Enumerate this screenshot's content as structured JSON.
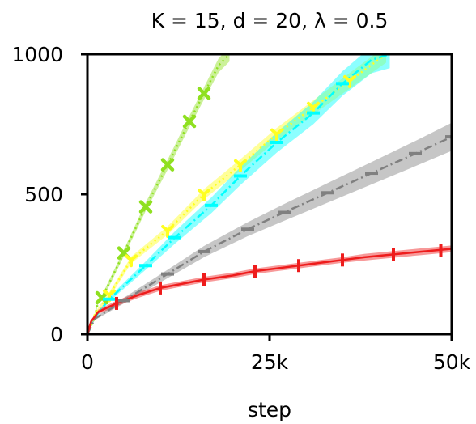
{
  "chart_data": {
    "type": "line",
    "title": "K = 15, d = 20, λ = 0.5",
    "xlabel": "step",
    "ylabel": "",
    "xlim": [
      0,
      50000
    ],
    "ylim": [
      0,
      1000
    ],
    "x_ticks": [
      {
        "value": 0,
        "label": "0"
      },
      {
        "value": 25000,
        "label": "25k"
      },
      {
        "value": 50000,
        "label": "50k"
      }
    ],
    "y_ticks": [
      {
        "value": 0,
        "label": "0"
      },
      {
        "value": 500,
        "label": "500"
      },
      {
        "value": 1000,
        "label": "1000"
      }
    ],
    "grid": false,
    "legend": "none",
    "series": [
      {
        "color": "#8fe020",
        "line_style": "dotted",
        "marker": "X",
        "band": true,
        "x": [
          0,
          1000,
          1500,
          2000,
          5000,
          8000,
          11000,
          14000,
          16000,
          18000,
          19500
        ],
        "y": [
          0,
          60,
          120,
          130,
          290,
          455,
          605,
          760,
          860,
          960,
          1000
        ],
        "band_halfwidth": [
          0,
          5,
          8,
          10,
          12,
          15,
          18,
          20,
          22,
          25,
          26
        ],
        "marker_x": [
          2000,
          5000,
          8000,
          11000,
          14000,
          16000
        ],
        "marker_y": [
          130,
          290,
          455,
          605,
          760,
          860
        ]
      },
      {
        "color": "#ffff20",
        "line_style": "dotted",
        "marker": "tri_down",
        "band": true,
        "x": [
          0,
          1000,
          3000,
          6000,
          11000,
          16000,
          21000,
          26000,
          31000,
          36000,
          41000
        ],
        "y": [
          0,
          70,
          140,
          265,
          370,
          500,
          605,
          715,
          810,
          905,
          1000
        ],
        "band_halfwidth": [
          0,
          6,
          10,
          12,
          15,
          18,
          20,
          22,
          25,
          28,
          30
        ],
        "marker_x": [
          3000,
          6000,
          11000,
          16000,
          21000,
          26000,
          31000,
          36000
        ],
        "marker_y": [
          140,
          265,
          370,
          500,
          605,
          715,
          810,
          905
        ]
      },
      {
        "color": "#00ffff",
        "line_style": "dashdot",
        "marker": "hline",
        "band": true,
        "x": [
          0,
          1000,
          3000,
          8000,
          12000,
          17000,
          21000,
          26000,
          31000,
          35000,
          39000,
          41500
        ],
        "y": [
          0,
          60,
          125,
          245,
          345,
          460,
          565,
          685,
          790,
          895,
          980,
          1000
        ],
        "band_halfwidth": [
          0,
          5,
          8,
          15,
          22,
          28,
          32,
          36,
          40,
          44,
          48,
          50
        ],
        "marker_x": [
          3000,
          8000,
          12000,
          17000,
          21000,
          26000,
          31000,
          35000
        ],
        "marker_y": [
          125,
          245,
          345,
          460,
          565,
          685,
          790,
          895
        ]
      },
      {
        "color": "#808080",
        "line_style": "dashdot",
        "marker": "hline",
        "band": true,
        "x": [
          0,
          1000,
          5000,
          11000,
          16000,
          22000,
          27000,
          33000,
          39000,
          45000,
          50000
        ],
        "y": [
          0,
          55,
          120,
          215,
          295,
          375,
          435,
          505,
          575,
          645,
          705
        ],
        "band_halfwidth": [
          0,
          5,
          10,
          15,
          20,
          25,
          30,
          35,
          40,
          45,
          50
        ],
        "marker_x": [
          5000,
          11000,
          16000,
          22000,
          27000,
          33000,
          39000,
          45000,
          50000
        ],
        "marker_y": [
          120,
          215,
          295,
          375,
          435,
          505,
          575,
          645,
          705
        ]
      },
      {
        "color": "#ee1c1c",
        "line_style": "solid",
        "marker": "vline",
        "band": true,
        "x": [
          0,
          500,
          1500,
          4000,
          7000,
          10000,
          13000,
          16000,
          20000,
          23000,
          26000,
          29000,
          32000,
          35000,
          38000,
          42000,
          46000,
          50000
        ],
        "y": [
          0,
          45,
          80,
          110,
          140,
          165,
          180,
          195,
          210,
          225,
          235,
          245,
          255,
          265,
          275,
          285,
          295,
          305
        ],
        "band_halfwidth": [
          0,
          5,
          8,
          10,
          10,
          10,
          10,
          10,
          10,
          10,
          10,
          10,
          10,
          10,
          12,
          12,
          12,
          12
        ],
        "marker_x": [
          4000,
          10000,
          16000,
          23000,
          29000,
          35000,
          42000,
          48500
        ],
        "marker_y": [
          110,
          165,
          195,
          225,
          245,
          265,
          285,
          300
        ]
      }
    ]
  }
}
